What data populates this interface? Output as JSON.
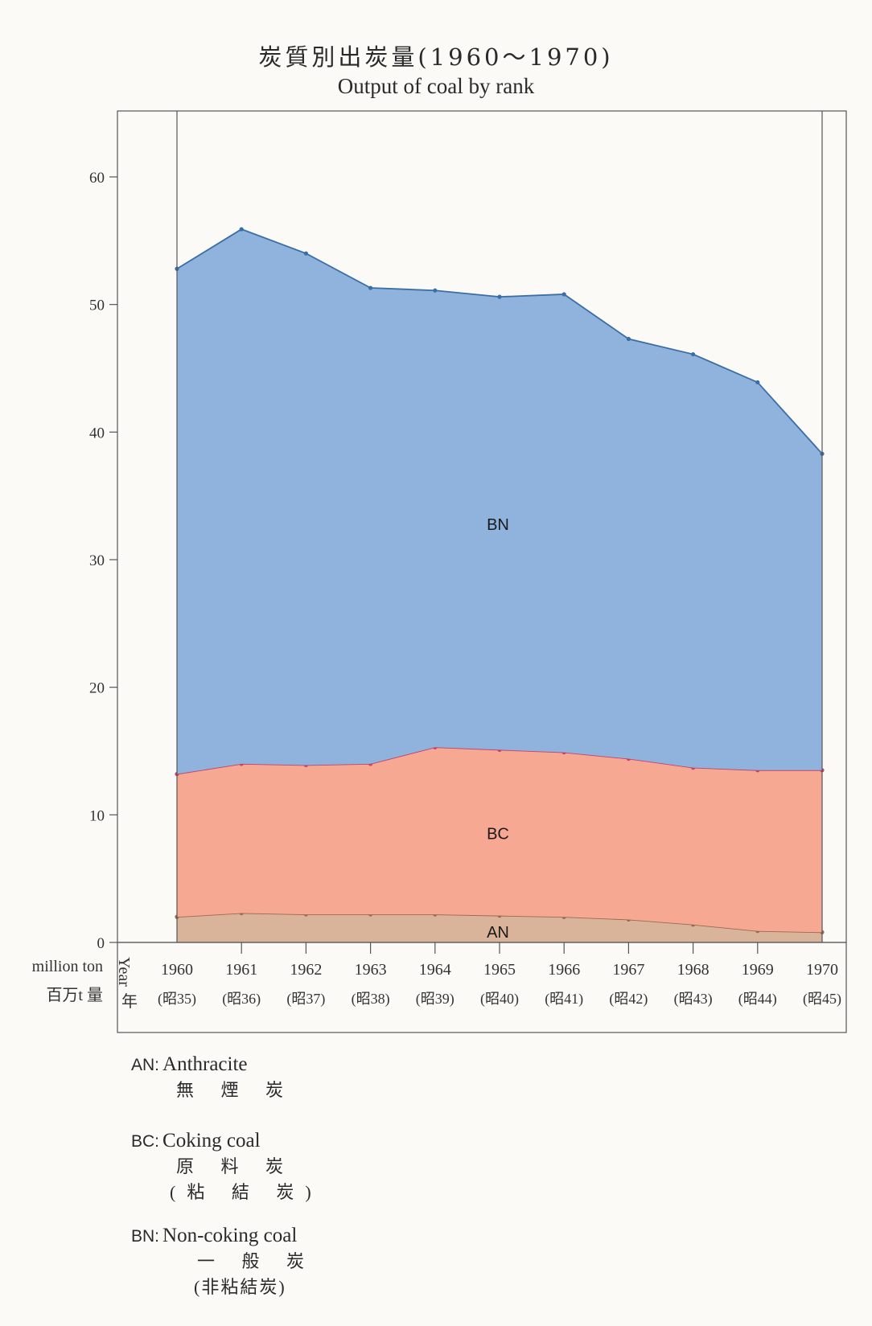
{
  "title": "炭質別出炭量(1960〜1970)",
  "subtitle": "Output of coal by rank",
  "axis": {
    "unit_en": "million ton",
    "unit_jp": "百万t 量",
    "year_en": "Year",
    "year_jp": "年"
  },
  "chart_data": {
    "type": "area",
    "stacked": true,
    "title": "炭質別出炭量(1960〜1970) Output of coal by rank",
    "ylabel": "million ton",
    "xlabel": "Year",
    "ylim": [
      0,
      65
    ],
    "yticks": [
      0,
      10,
      20,
      30,
      40,
      50,
      60
    ],
    "x": [
      "1960",
      "1961",
      "1962",
      "1963",
      "1964",
      "1965",
      "1966",
      "1967",
      "1968",
      "1969",
      "1970"
    ],
    "x_era": [
      "(昭35)",
      "(昭36)",
      "(昭37)",
      "(昭38)",
      "(昭39)",
      "(昭40)",
      "(昭41)",
      "(昭42)",
      "(昭43)",
      "(昭44)",
      "(昭45)"
    ],
    "series": [
      {
        "name": "AN",
        "color": "#d9b49a",
        "line": "#9a6a50",
        "values": [
          2.0,
          2.3,
          2.2,
          2.2,
          2.2,
          2.1,
          2.0,
          1.8,
          1.4,
          0.9,
          0.8
        ]
      },
      {
        "name": "BC",
        "color": "#f7a893",
        "line": "#c2436a",
        "values": [
          11.2,
          11.7,
          11.7,
          11.8,
          13.1,
          13.0,
          12.9,
          12.6,
          12.3,
          12.6,
          12.7
        ]
      },
      {
        "name": "BN",
        "color": "#8fb3dc",
        "line": "#3a6ea5",
        "values": [
          39.6,
          41.9,
          40.1,
          37.3,
          35.8,
          35.5,
          35.9,
          32.9,
          32.4,
          30.4,
          24.8
        ]
      }
    ],
    "cumulative_top": [
      52.8,
      55.9,
      54.0,
      51.3,
      51.1,
      50.6,
      50.8,
      47.3,
      46.1,
      43.9,
      38.3
    ],
    "grid": false,
    "legend": "bottom-left"
  },
  "legend": [
    {
      "code": "AN:",
      "en": "Anthracite",
      "jp": [
        "無 煙 炭"
      ]
    },
    {
      "code": "BC:",
      "en": "Coking coal",
      "jp": [
        "原 料 炭",
        "(粘 結 炭)"
      ]
    },
    {
      "code": "BN:",
      "en": "Non-coking coal",
      "jp": [
        "一 般 炭",
        "(非粘結炭)"
      ]
    }
  ]
}
